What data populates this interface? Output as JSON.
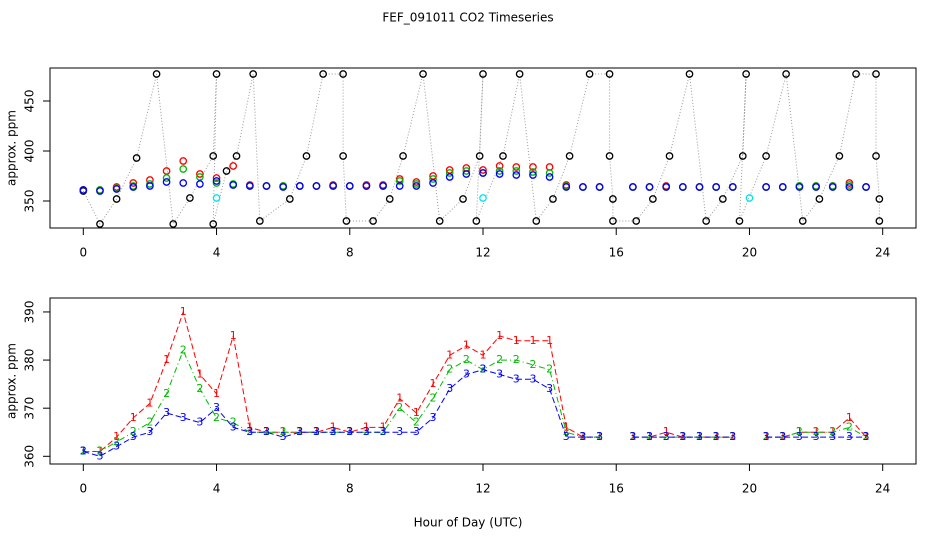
{
  "chart_data": [
    {
      "type": "scatter",
      "title": "FEF_091011  CO2 Timeseries",
      "ylabel": "approx. ppm",
      "xlim": [
        -1,
        25
      ],
      "ylim": [
        323,
        483
      ],
      "xticks": [
        0,
        4,
        8,
        12,
        16,
        20,
        24
      ],
      "yticks": [
        350,
        400,
        450
      ],
      "x": [
        0,
        0.5,
        1,
        1.5,
        2,
        2.5,
        3,
        3.5,
        4,
        4.5,
        5,
        5.5,
        6,
        6.5,
        7,
        7.5,
        8,
        8.5,
        9,
        9.5,
        10,
        10.5,
        11,
        11.5,
        12,
        12.5,
        13,
        13.5,
        14,
        14.5,
        15,
        15.5,
        16,
        16.5,
        17,
        17.5,
        18,
        18.5,
        19,
        19.5,
        20,
        20.5,
        21,
        21.5,
        22,
        22.5,
        23,
        23.5
      ],
      "series": [
        {
          "color": "#000000",
          "linestyle": "dotted",
          "linecolor": "#999999",
          "x": [
            0,
            0.5,
            1,
            1.6,
            2.2,
            2.7,
            3.2,
            3.9,
            4,
            3.9,
            4.3,
            4.6,
            5.1,
            5.3,
            6.2,
            6.7,
            7.2,
            7.8,
            7.8,
            7.9,
            8.7,
            9.2,
            9.6,
            10.2,
            10.7,
            11.4,
            11.9,
            12,
            11.8,
            12.6,
            13.1,
            13.6,
            14.1,
            14.6,
            15.2,
            15.8,
            15.8,
            15.9,
            15.9,
            16.6,
            17.1,
            17.6,
            18.2,
            18.7,
            19.2,
            19.8,
            19.9,
            19.7,
            20.5,
            21.1,
            21.6,
            22.1,
            22.7,
            23.2,
            23.8,
            23.8,
            23.9,
            23.9
          ],
          "values": [
            360,
            327,
            352,
            393,
            477,
            327,
            353,
            395,
            477,
            327,
            380,
            395,
            477,
            330,
            352,
            395,
            477,
            477,
            395,
            330,
            330,
            352,
            395,
            477,
            330,
            352,
            395,
            477,
            330,
            395,
            477,
            330,
            352,
            395,
            477,
            477,
            395,
            352,
            330,
            330,
            352,
            395,
            477,
            330,
            352,
            395,
            477,
            330,
            395,
            477,
            330,
            352,
            395,
            477,
            477,
            395,
            352,
            330
          ]
        },
        {
          "color": "#ff0000",
          "values": [
            361,
            361,
            364,
            368,
            371,
            380,
            390,
            377,
            373,
            385,
            366,
            365,
            365,
            365,
            365,
            366,
            365,
            366,
            366,
            372,
            369,
            375,
            381,
            383,
            381,
            385,
            384,
            384,
            384,
            366,
            364,
            364,
            null,
            364,
            364,
            365,
            364,
            364,
            364,
            364,
            null,
            364,
            364,
            365,
            365,
            365,
            368,
            364
          ]
        },
        {
          "color": "#00bb00",
          "values": [
            361,
            361,
            363,
            365,
            367,
            373,
            382,
            374,
            368,
            367,
            365,
            365,
            365,
            365,
            365,
            365,
            365,
            365,
            365,
            370,
            367,
            372,
            378,
            380,
            378,
            380,
            380,
            379,
            378,
            365,
            364,
            364,
            null,
            364,
            364,
            364,
            364,
            364,
            364,
            364,
            null,
            364,
            364,
            365,
            365,
            365,
            366,
            364
          ]
        },
        {
          "color": "#0000ff",
          "values": [
            361,
            360,
            362,
            364,
            365,
            369,
            368,
            367,
            370,
            366,
            365,
            365,
            364,
            365,
            365,
            365,
            365,
            365,
            365,
            365,
            365,
            368,
            374,
            377,
            378,
            377,
            376,
            376,
            374,
            364,
            364,
            364,
            null,
            364,
            364,
            364,
            364,
            364,
            364,
            364,
            null,
            364,
            364,
            364,
            364,
            364,
            364,
            364
          ]
        },
        {
          "color": "#00e5ee",
          "x": [
            4,
            12,
            20
          ],
          "values": [
            353,
            353,
            353
          ]
        }
      ]
    },
    {
      "type": "line",
      "ylabel": "approx. ppm",
      "xlabel": "Hour of Day (UTC)",
      "xlim": [
        -1,
        25
      ],
      "ylim": [
        358.4,
        392.9
      ],
      "xticks": [
        0,
        4,
        8,
        12,
        16,
        20,
        24
      ],
      "yticks": [
        360,
        370,
        380,
        390
      ],
      "x": [
        0,
        0.5,
        1,
        1.5,
        2,
        2.5,
        3,
        3.5,
        4,
        4.5,
        5,
        5.5,
        6,
        6.5,
        7,
        7.5,
        8,
        8.5,
        9,
        9.5,
        10,
        10.5,
        11,
        11.5,
        12,
        12.5,
        13,
        13.5,
        14,
        14.5,
        15,
        15.5,
        16,
        16.5,
        17,
        17.5,
        18,
        18.5,
        19,
        19.5,
        20,
        20.5,
        21,
        21.5,
        22,
        22.5,
        23,
        23.5
      ],
      "series": [
        {
          "color": "#ff0000",
          "marker": "1",
          "linestyle": "dashed",
          "values": [
            361,
            361,
            364,
            368,
            371,
            380,
            390,
            377,
            373,
            385,
            366,
            365,
            365,
            365,
            365,
            366,
            365,
            366,
            366,
            372,
            369,
            375,
            381,
            383,
            381,
            385,
            384,
            384,
            384,
            366,
            364,
            364,
            null,
            364,
            364,
            365,
            364,
            364,
            364,
            364,
            null,
            364,
            364,
            365,
            365,
            365,
            368,
            364
          ]
        },
        {
          "color": "#00bb00",
          "marker": "2",
          "linestyle": "dashdot",
          "values": [
            361,
            361,
            363,
            365,
            367,
            373,
            382,
            374,
            368,
            367,
            365,
            365,
            365,
            365,
            365,
            365,
            365,
            365,
            365,
            370,
            367,
            372,
            378,
            380,
            378,
            380,
            380,
            379,
            378,
            365,
            364,
            364,
            null,
            364,
            364,
            364,
            364,
            364,
            364,
            364,
            null,
            364,
            364,
            365,
            365,
            365,
            366,
            364
          ]
        },
        {
          "color": "#0000ff",
          "marker": "3",
          "linestyle": "dashed",
          "values": [
            361,
            360,
            362,
            364,
            365,
            369,
            368,
            367,
            370,
            366,
            365,
            365,
            364,
            365,
            365,
            365,
            365,
            365,
            365,
            365,
            365,
            368,
            374,
            377,
            378,
            377,
            376,
            376,
            374,
            364,
            364,
            364,
            null,
            364,
            364,
            364,
            364,
            364,
            364,
            364,
            null,
            364,
            364,
            364,
            364,
            364,
            364,
            364
          ]
        }
      ]
    }
  ]
}
